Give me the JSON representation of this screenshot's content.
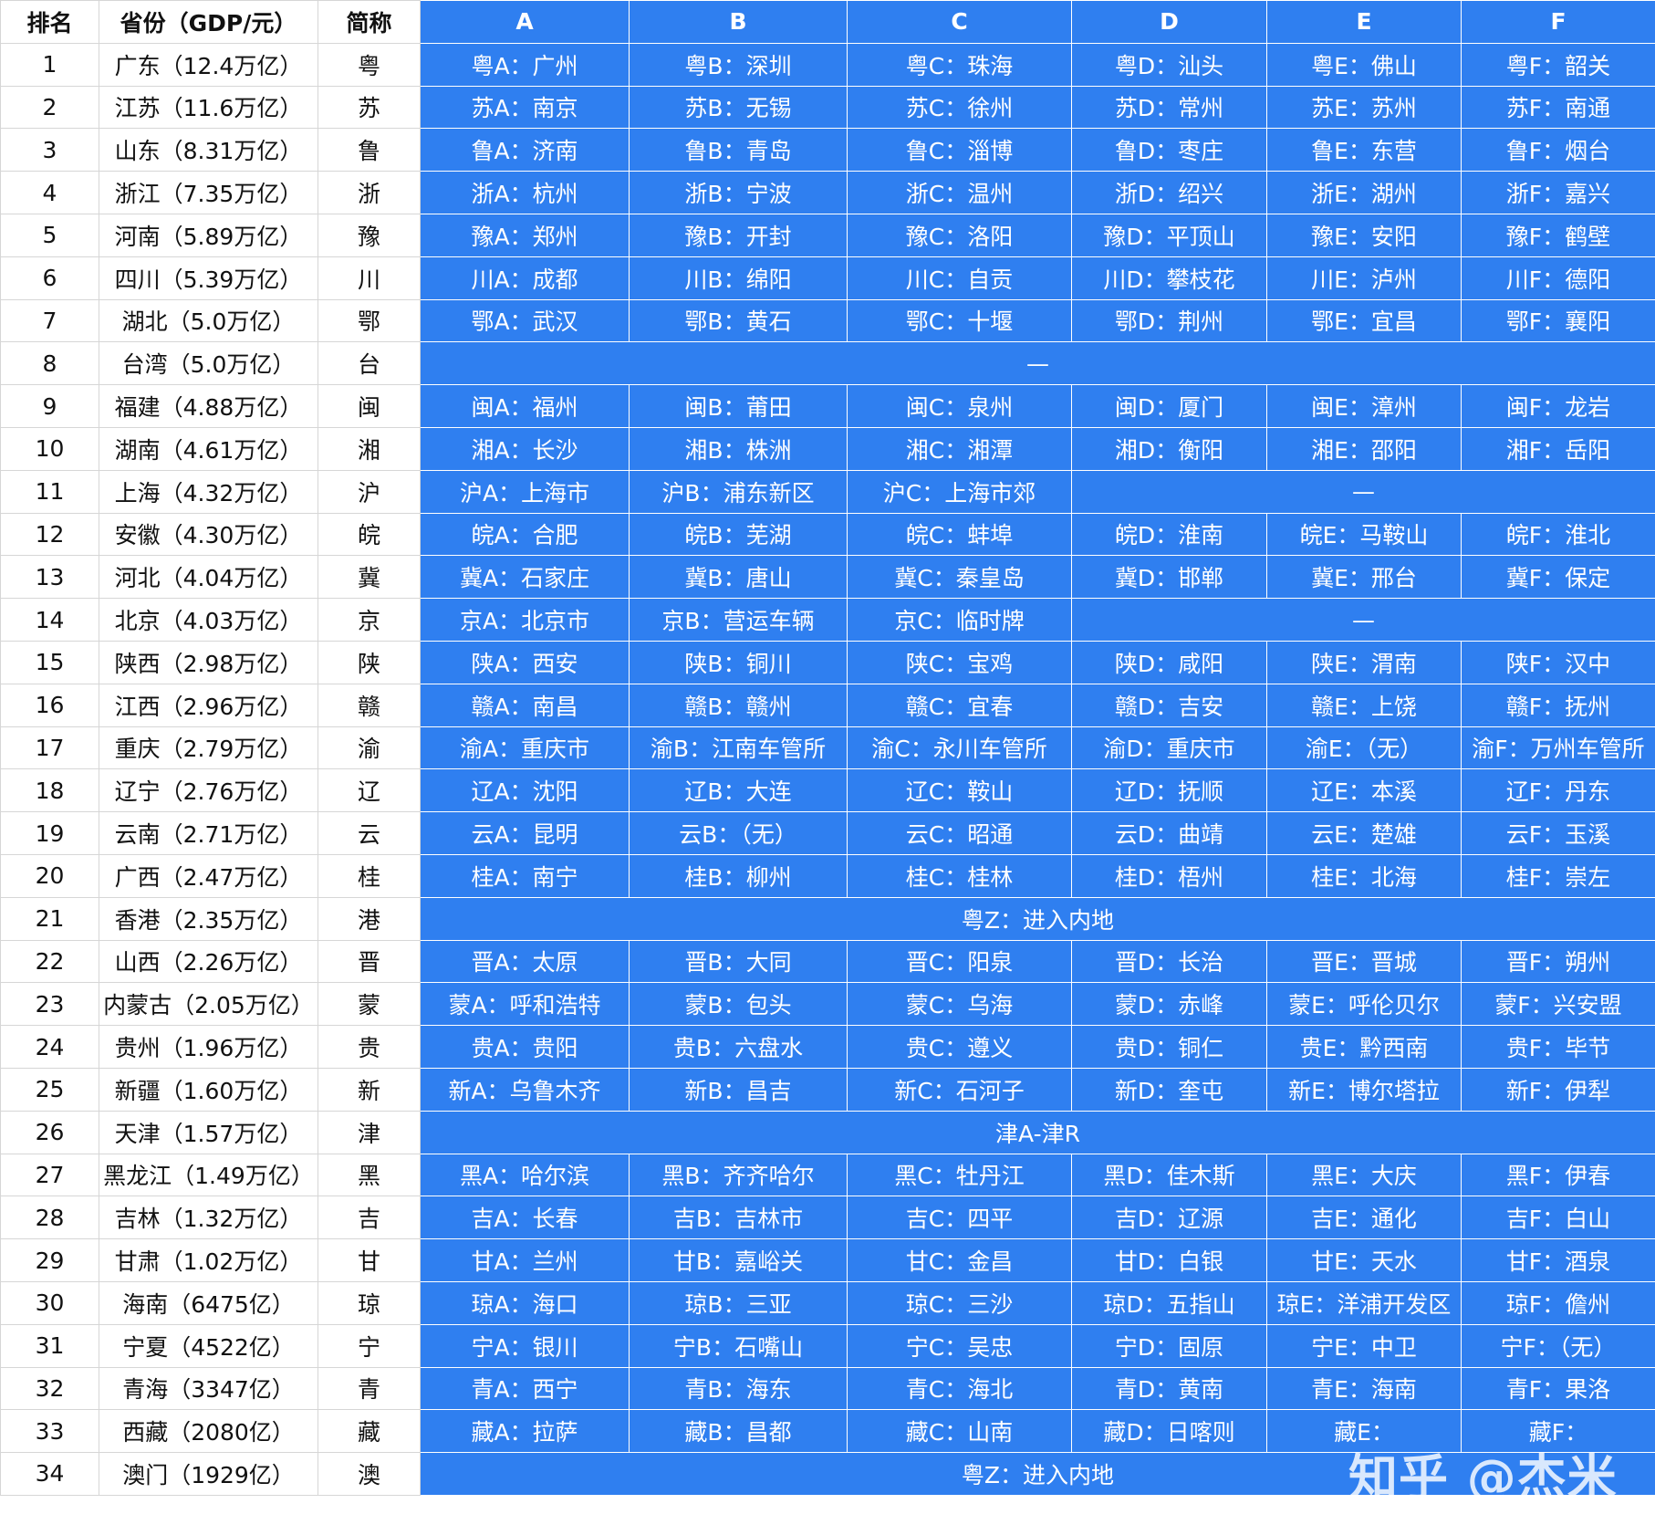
{
  "header": {
    "rank": "排名",
    "province": "省份（GDP/元）",
    "abbr": "简称",
    "codes": [
      "A",
      "B",
      "C",
      "D",
      "E",
      "F"
    ]
  },
  "rows": [
    {
      "rank": "1",
      "province": "广东（12.4万亿）",
      "abbr": "粤",
      "plates": [
        "粤A：广州",
        "粤B：深圳",
        "粤C：珠海",
        "粤D：汕头",
        "粤E：佛山",
        "粤F：韶关"
      ]
    },
    {
      "rank": "2",
      "province": "江苏（11.6万亿）",
      "abbr": "苏",
      "plates": [
        "苏A：南京",
        "苏B：无锡",
        "苏C：徐州",
        "苏D：常州",
        "苏E：苏州",
        "苏F：南通"
      ]
    },
    {
      "rank": "3",
      "province": "山东（8.31万亿）",
      "abbr": "鲁",
      "plates": [
        "鲁A：济南",
        "鲁B：青岛",
        "鲁C：淄博",
        "鲁D：枣庄",
        "鲁E：东营",
        "鲁F：烟台"
      ]
    },
    {
      "rank": "4",
      "province": "浙江（7.35万亿）",
      "abbr": "浙",
      "plates": [
        "浙A：杭州",
        "浙B：宁波",
        "浙C：温州",
        "浙D：绍兴",
        "浙E：湖州",
        "浙F：嘉兴"
      ]
    },
    {
      "rank": "5",
      "province": "河南（5.89万亿）",
      "abbr": "豫",
      "plates": [
        "豫A：郑州",
        "豫B：开封",
        "豫C：洛阳",
        "豫D：平顶山",
        "豫E：安阳",
        "豫F：鹤壁"
      ]
    },
    {
      "rank": "6",
      "province": "四川（5.39万亿）",
      "abbr": "川",
      "plates": [
        "川A：成都",
        "川B：绵阳",
        "川C：自贡",
        "川D：攀枝花",
        "川E：泸州",
        "川F：德阳"
      ]
    },
    {
      "rank": "7",
      "province": "湖北（5.0万亿）",
      "abbr": "鄂",
      "plates": [
        "鄂A：武汉",
        "鄂B：黄石",
        "鄂C：十堰",
        "鄂D：荆州",
        "鄂E：宜昌",
        "鄂F：襄阳"
      ]
    },
    {
      "rank": "8",
      "province": "台湾（5.0万亿）",
      "abbr": "台",
      "merged": "—"
    },
    {
      "rank": "9",
      "province": "福建（4.88万亿）",
      "abbr": "闽",
      "plates": [
        "闽A：福州",
        "闽B：莆田",
        "闽C：泉州",
        "闽D：厦门",
        "闽E：漳州",
        "闽F：龙岩"
      ]
    },
    {
      "rank": "10",
      "province": "湖南（4.61万亿）",
      "abbr": "湘",
      "plates": [
        "湘A：长沙",
        "湘B：株洲",
        "湘C：湘潭",
        "湘D：衡阳",
        "湘E：邵阳",
        "湘F：岳阳"
      ]
    },
    {
      "rank": "11",
      "province": "上海（4.32万亿）",
      "abbr": "沪",
      "plates": [
        "沪A：上海市",
        "沪B：浦东新区",
        "沪C：上海市郊"
      ],
      "rest": "—"
    },
    {
      "rank": "12",
      "province": "安徽（4.30万亿）",
      "abbr": "皖",
      "plates": [
        "皖A：合肥",
        "皖B：芜湖",
        "皖C：蚌埠",
        "皖D：淮南",
        "皖E：马鞍山",
        "皖F：淮北"
      ]
    },
    {
      "rank": "13",
      "province": "河北（4.04万亿）",
      "abbr": "冀",
      "plates": [
        "冀A：石家庄",
        "冀B：唐山",
        "冀C：秦皇岛",
        "冀D：邯郸",
        "冀E：邢台",
        "冀F：保定"
      ]
    },
    {
      "rank": "14",
      "province": "北京（4.03万亿）",
      "abbr": "京",
      "plates": [
        "京A：北京市",
        "京B：营运车辆",
        "京C：临时牌"
      ],
      "rest": "—"
    },
    {
      "rank": "15",
      "province": "陕西（2.98万亿）",
      "abbr": "陕",
      "plates": [
        "陕A：西安",
        "陕B：铜川",
        "陕C：宝鸡",
        "陕D：咸阳",
        "陕E：渭南",
        "陕F：汉中"
      ]
    },
    {
      "rank": "16",
      "province": "江西（2.96万亿）",
      "abbr": "赣",
      "plates": [
        "赣A：南昌",
        "赣B：赣州",
        "赣C：宜春",
        "赣D：吉安",
        "赣E：上饶",
        "赣F：抚州"
      ]
    },
    {
      "rank": "17",
      "province": "重庆（2.79万亿）",
      "abbr": "渝",
      "plates": [
        "渝A：重庆市",
        "渝B：江南车管所",
        "渝C：永川车管所",
        "渝D：重庆市",
        "渝E：（无）",
        "渝F：万州车管所"
      ]
    },
    {
      "rank": "18",
      "province": "辽宁（2.76万亿）",
      "abbr": "辽",
      "plates": [
        "辽A：沈阳",
        "辽B：大连",
        "辽C：鞍山",
        "辽D：抚顺",
        "辽E：本溪",
        "辽F：丹东"
      ]
    },
    {
      "rank": "19",
      "province": "云南（2.71万亿）",
      "abbr": "云",
      "plates": [
        "云A：昆明",
        "云B：（无）",
        "云C：昭通",
        "云D：曲靖",
        "云E：楚雄",
        "云F：玉溪"
      ]
    },
    {
      "rank": "20",
      "province": "广西（2.47万亿）",
      "abbr": "桂",
      "plates": [
        "桂A：南宁",
        "桂B：柳州",
        "桂C：桂林",
        "桂D：梧州",
        "桂E：北海",
        "桂F：崇左"
      ]
    },
    {
      "rank": "21",
      "province": "香港（2.35万亿）",
      "abbr": "港",
      "merged": "粤Z：进入内地"
    },
    {
      "rank": "22",
      "province": "山西（2.26万亿）",
      "abbr": "晋",
      "plates": [
        "晋A：太原",
        "晋B：大同",
        "晋C：阳泉",
        "晋D：长治",
        "晋E：晋城",
        "晋F：朔州"
      ]
    },
    {
      "rank": "23",
      "province": "内蒙古（2.05万亿）",
      "abbr": "蒙",
      "plates": [
        "蒙A：呼和浩特",
        "蒙B：包头",
        "蒙C：乌海",
        "蒙D：赤峰",
        "蒙E：呼伦贝尔",
        "蒙F：兴安盟"
      ]
    },
    {
      "rank": "24",
      "province": "贵州（1.96万亿）",
      "abbr": "贵",
      "plates": [
        "贵A：贵阳",
        "贵B：六盘水",
        "贵C：遵义",
        "贵D：铜仁",
        "贵E：黔西南",
        "贵F：毕节"
      ]
    },
    {
      "rank": "25",
      "province": "新疆（1.60万亿）",
      "abbr": "新",
      "plates": [
        "新A：乌鲁木齐",
        "新B：昌吉",
        "新C：石河子",
        "新D：奎屯",
        "新E：博尔塔拉",
        "新F：伊犁"
      ]
    },
    {
      "rank": "26",
      "province": "天津（1.57万亿）",
      "abbr": "津",
      "merged": "津A-津R"
    },
    {
      "rank": "27",
      "province": "黑龙江（1.49万亿）",
      "abbr": "黑",
      "plates": [
        "黑A：哈尔滨",
        "黑B：齐齐哈尔",
        "黑C：牡丹江",
        "黑D：佳木斯",
        "黑E：大庆",
        "黑F：伊春"
      ]
    },
    {
      "rank": "28",
      "province": "吉林（1.32万亿）",
      "abbr": "吉",
      "plates": [
        "吉A：长春",
        "吉B：吉林市",
        "吉C：四平",
        "吉D：辽源",
        "吉E：通化",
        "吉F：白山"
      ]
    },
    {
      "rank": "29",
      "province": "甘肃（1.02万亿）",
      "abbr": "甘",
      "plates": [
        "甘A：兰州",
        "甘B：嘉峪关",
        "甘C：金昌",
        "甘D：白银",
        "甘E：天水",
        "甘F：酒泉"
      ]
    },
    {
      "rank": "30",
      "province": "海南（6475亿）",
      "abbr": "琼",
      "plates": [
        "琼A：海口",
        "琼B：三亚",
        "琼C：三沙",
        "琼D：五指山",
        "琼E：洋浦开发区",
        "琼F：儋州"
      ]
    },
    {
      "rank": "31",
      "province": "宁夏（4522亿）",
      "abbr": "宁",
      "plates": [
        "宁A：银川",
        "宁B：石嘴山",
        "宁C：吴忠",
        "宁D：固原",
        "宁E：中卫",
        "宁F：（无）"
      ]
    },
    {
      "rank": "32",
      "province": "青海（3347亿）",
      "abbr": "青",
      "plates": [
        "青A：西宁",
        "青B：海东",
        "青C：海北",
        "青D：黄南",
        "青E：海南",
        "青F：果洛"
      ]
    },
    {
      "rank": "33",
      "province": "西藏（2080亿）",
      "abbr": "藏",
      "plates": [
        "藏A：拉萨",
        "藏B：昌都",
        "藏C：山南",
        "藏D：日喀则",
        "藏E：",
        "藏F："
      ]
    },
    {
      "rank": "34",
      "province": "澳门（1929亿）",
      "abbr": "澳",
      "merged": "粤Z：进入内地"
    }
  ],
  "watermark": "知乎 @杰米"
}
